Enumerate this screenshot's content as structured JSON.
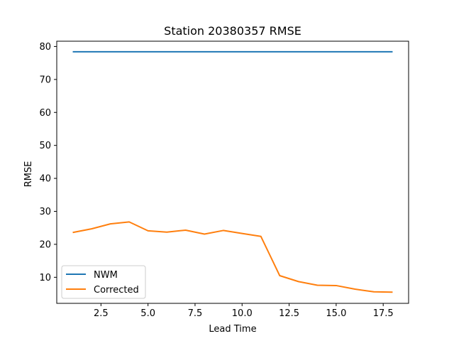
{
  "chart_data": {
    "type": "line",
    "title": "Station 20380357 RMSE",
    "xlabel": "Lead Time",
    "ylabel": "RMSE",
    "xlim": [
      0.15,
      18.85
    ],
    "ylim": [
      2.1,
      81.6
    ],
    "xticks": [
      2.5,
      5.0,
      7.5,
      10.0,
      12.5,
      15.0,
      17.5
    ],
    "xtick_labels": [
      "2.5",
      "5.0",
      "7.5",
      "10.0",
      "12.5",
      "15.0",
      "17.5"
    ],
    "yticks": [
      10,
      20,
      30,
      40,
      50,
      60,
      70,
      80
    ],
    "ytick_labels": [
      "10",
      "20",
      "30",
      "40",
      "50",
      "60",
      "70",
      "80"
    ],
    "grid": false,
    "legend_position": "lower-left",
    "x": [
      1,
      2,
      3,
      4,
      5,
      6,
      7,
      8,
      9,
      10,
      11,
      12,
      13,
      14,
      15,
      16,
      17,
      18
    ],
    "series": [
      {
        "name": "NWM",
        "color": "#1f77b4",
        "values": [
          78.4,
          78.4,
          78.4,
          78.4,
          78.4,
          78.4,
          78.4,
          78.4,
          78.4,
          78.4,
          78.4,
          78.4,
          78.4,
          78.4,
          78.4,
          78.4,
          78.4,
          78.4
        ]
      },
      {
        "name": "Corrected",
        "color": "#ff7f0e",
        "values": [
          23.6,
          24.7,
          26.2,
          26.8,
          24.1,
          23.7,
          24.3,
          23.1,
          24.2,
          23.3,
          22.4,
          10.5,
          8.7,
          7.6,
          7.5,
          6.4,
          5.6,
          5.5
        ]
      }
    ]
  }
}
